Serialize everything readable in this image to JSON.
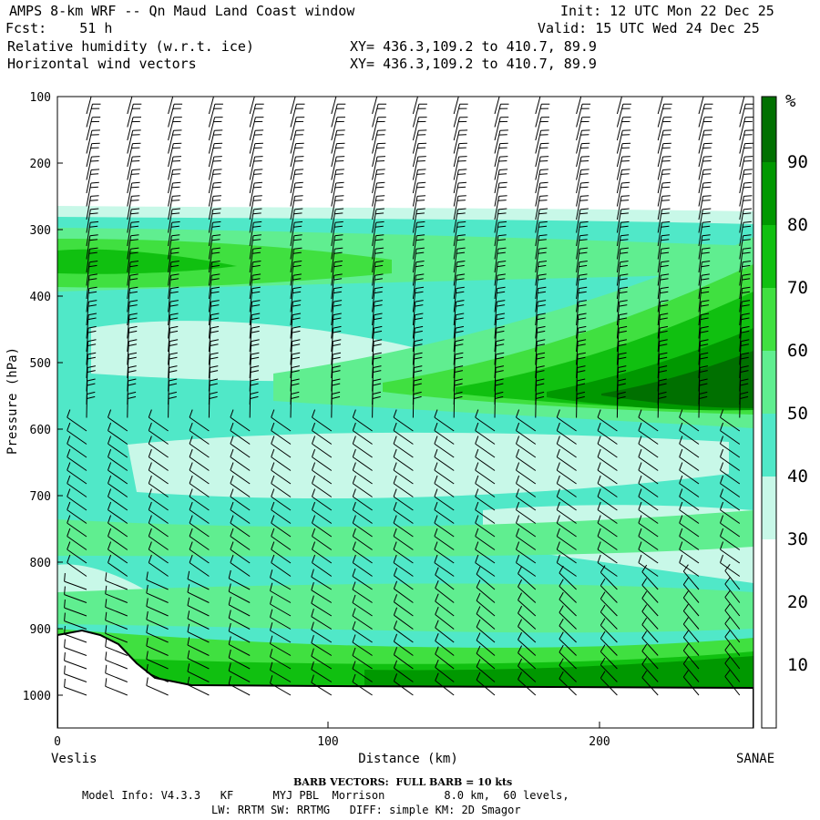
{
  "header": {
    "line1_left": "AMPS 8-km WRF -- Qn Maud Land Coast window",
    "line2_left": "Fcst:    51 h",
    "line3_left": "Relative humidity (w.r.t. ice)",
    "line4_left": "Horizontal wind vectors",
    "line1_right": "Init: 12 UTC Mon 22 Dec 25",
    "line2_right": "Valid: 15 UTC Wed 24 Dec 25",
    "xy_line3": "XY= 436.3,109.2 to 410.7, 89.9",
    "xy_line4": "XY= 436.3,109.2 to 410.7, 89.9"
  },
  "chart_data": {
    "type": "heatmap",
    "ylabel": "Pressure (hPa)",
    "xlabel": "Distance (km)",
    "y_ticks": [
      "100",
      "200",
      "300",
      "400",
      "500",
      "600",
      "700",
      "800",
      "900",
      "1000"
    ],
    "x_ticks": [
      "0",
      "100",
      "200"
    ],
    "ylim": [
      100,
      1050
    ],
    "xlim": [
      0,
      258
    ],
    "left_endpoint": "Veslis",
    "right_endpoint": "SANAE",
    "colorbar": {
      "unit": "%",
      "levels": [
        "10",
        "20",
        "30",
        "40",
        "50",
        "60",
        "70",
        "80",
        "90"
      ],
      "colors": [
        "#ffffff",
        "#ffffff",
        "#ffffff",
        "#c8f8e8",
        "#50e8c8",
        "#60ee90",
        "#40e040",
        "#10c010",
        "#009800",
        "#007000"
      ]
    },
    "terrain_surface_hpa": [
      [
        0,
        900
      ],
      [
        10,
        900
      ],
      [
        20,
        915
      ],
      [
        30,
        945
      ],
      [
        40,
        975
      ],
      [
        50,
        985
      ],
      [
        100,
        987
      ],
      [
        258,
        988
      ]
    ],
    "barb_note": "BARB VECTORS:  FULL BARB = 10 kts"
  },
  "footer": {
    "barb_line": "BARB VECTORS:  FULL BARB = 10 kts",
    "model_line": "Model Info: V4.3.3   KF      MYJ PBL  Morrison         8.0 km,  60 levels,",
    "physics_line": "LW: RRTM SW: RRTMG   DIFF: simple KM: 2D Smagor"
  }
}
